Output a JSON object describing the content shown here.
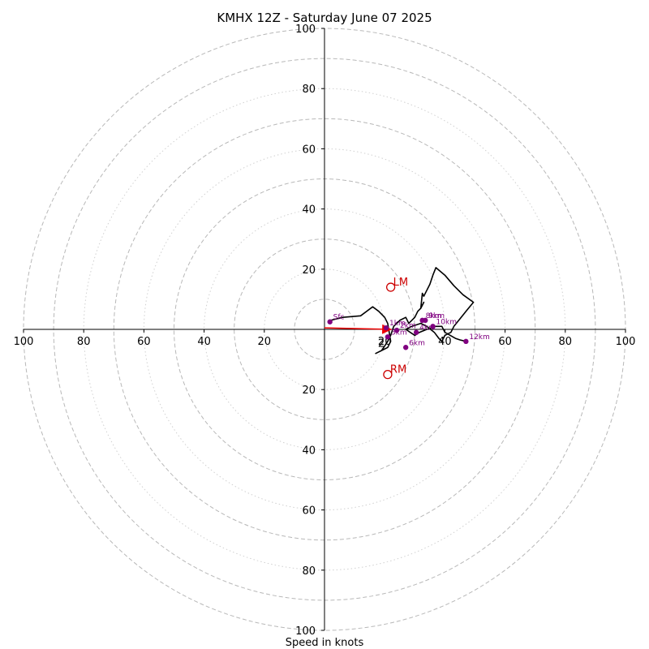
{
  "chart_data": {
    "type": "hodograph",
    "title": "KMHX 12Z - Saturday June 07 2025",
    "xlabel": "Speed in knots",
    "range": [
      -100,
      100
    ],
    "tick_labels": {
      "x": [
        "100",
        "80",
        "60",
        "40",
        "20",
        "20",
        "40",
        "60",
        "80",
        "100"
      ],
      "y": [
        "100",
        "80",
        "60",
        "40",
        "20",
        "20",
        "40",
        "60",
        "80",
        "100"
      ]
    },
    "x_ticks": [
      -100,
      -80,
      -60,
      -40,
      -20,
      20,
      40,
      60,
      80,
      100
    ],
    "y_ticks": [
      100,
      80,
      60,
      40,
      20,
      -20,
      -40,
      -60,
      -80,
      -100
    ],
    "rings_major": [
      10,
      30,
      50,
      70,
      90
    ],
    "rings_minor": [
      20,
      40,
      60,
      80,
      100
    ],
    "ring_style": {
      "dashed_rings": [
        10,
        30,
        50,
        70,
        90,
        100
      ],
      "dotted_rings": [
        20,
        40,
        60,
        80
      ]
    },
    "hodograph_trace": [
      [
        2,
        3
      ],
      [
        6,
        4
      ],
      [
        12,
        4.5
      ],
      [
        16,
        7.5
      ],
      [
        18,
        6
      ],
      [
        20,
        4
      ],
      [
        21,
        2
      ],
      [
        21.5,
        -1
      ],
      [
        22,
        -4
      ],
      [
        21,
        -6
      ],
      [
        19,
        -7
      ],
      [
        17,
        -8
      ],
      [
        19,
        -7
      ],
      [
        21,
        -4
      ],
      [
        22,
        -2
      ],
      [
        23,
        1
      ],
      [
        25,
        3
      ],
      [
        27,
        4
      ],
      [
        28,
        2
      ],
      [
        30,
        4
      ],
      [
        31,
        6
      ],
      [
        32,
        7
      ],
      [
        33,
        9
      ],
      [
        32,
        7
      ],
      [
        32.5,
        12
      ],
      [
        33,
        11
      ],
      [
        35,
        15
      ],
      [
        36,
        18
      ],
      [
        37,
        20.5
      ],
      [
        40,
        18
      ],
      [
        43,
        14.5
      ],
      [
        46,
        11.5
      ],
      [
        49.5,
        9
      ],
      [
        47,
        6
      ],
      [
        45,
        3.5
      ],
      [
        43,
        1
      ],
      [
        42,
        -1
      ],
      [
        40,
        -2
      ],
      [
        39,
        -4
      ],
      [
        38,
        -3
      ],
      [
        36.5,
        -1
      ],
      [
        34,
        1
      ],
      [
        32,
        2
      ],
      [
        29,
        1
      ],
      [
        27,
        0
      ],
      [
        30,
        -2
      ],
      [
        31.5,
        -1
      ],
      [
        34,
        0
      ],
      [
        37,
        1
      ],
      [
        39,
        1
      ],
      [
        40,
        -1
      ],
      [
        43.5,
        -3
      ],
      [
        45,
        -3.5
      ],
      [
        47,
        -4
      ]
    ],
    "height_points": [
      {
        "label": "Sfc",
        "x": 1.8,
        "y": 2.5
      },
      {
        "label": "1km",
        "x": 20.5,
        "y": 0.5
      },
      {
        "label": "2km",
        "x": 24,
        "y": -0.3
      },
      {
        "label": "3km",
        "x": 21,
        "y": -2.5
      },
      {
        "label": "4km",
        "x": 30.5,
        "y": -1
      },
      {
        "label": "6km",
        "x": 27,
        "y": -6
      },
      {
        "label": "8km",
        "x": 32.5,
        "y": 3
      },
      {
        "label": "9km",
        "x": 33.5,
        "y": 3
      },
      {
        "label": "10km",
        "x": 36,
        "y": 1
      },
      {
        "label": "12km",
        "x": 47,
        "y": -4
      }
    ],
    "storm_motion": [
      {
        "label": "LM",
        "x": 22,
        "y": 14
      },
      {
        "label": "RM",
        "x": 21,
        "y": -15
      }
    ],
    "mean_wind": {
      "label": "2",
      "x": 21,
      "y": -4.5
    },
    "vector": {
      "from": [
        0,
        0.5
      ],
      "to": [
        22,
        0
      ]
    },
    "colors": {
      "trace": "#000000",
      "points": "#800080",
      "point_labels": "#800080",
      "storm": "#cc0000",
      "vector": "#ee0000",
      "grid": "#b8b8b8",
      "axes": "#000000"
    }
  }
}
